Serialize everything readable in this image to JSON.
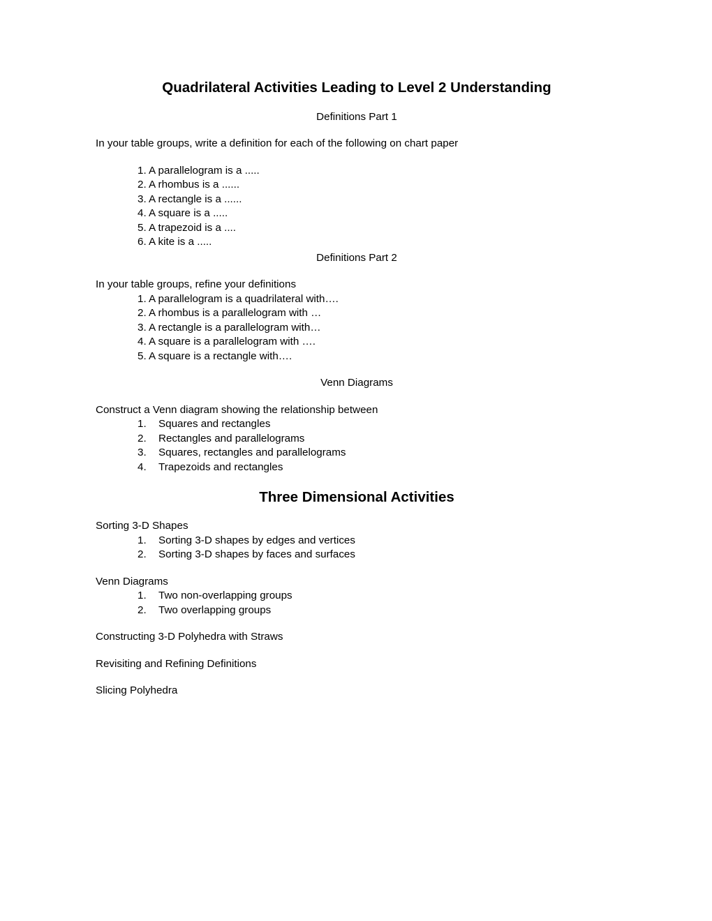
{
  "title1": "Quadrilateral Activities Leading to Level 2 Understanding",
  "subtitle1": "Definitions Part 1",
  "intro1": "In your table groups, write a definition for each of the following on chart paper",
  "defs1": {
    "0": "1. A parallelogram is a .....",
    "1": "2. A rhombus is a ......",
    "2": "3. A rectangle is a ......",
    "3": "4. A square is a .....",
    "4": "5. A trapezoid is a ....",
    "5": "6.  A kite is a ....."
  },
  "subtitle2": "Definitions Part 2",
  "intro2": "In your table groups, refine your definitions",
  "defs2": {
    "0": "1. A parallelogram is a quadrilateral with….",
    "1": "2. A rhombus is a parallelogram with …",
    "2": "3. A rectangle is a parallelogram with…",
    "3": "4. A square is a parallelogram with ….",
    "4": "5. A square is a rectangle with…."
  },
  "subtitle3": "Venn Diagrams",
  "intro3": "Construct a Venn diagram showing the relationship between",
  "venn": {
    "0": {
      "n": "1.",
      "t": "Squares and rectangles"
    },
    "1": {
      "n": "2.",
      "t": "Rectangles and parallelograms"
    },
    "2": {
      "n": "3.",
      "t": "Squares, rectangles and parallelograms"
    },
    "3": {
      "n": "4.",
      "t": "Trapezoids and rectangles"
    }
  },
  "title2": "Three Dimensional Activities",
  "sorting_title": "Sorting 3-D Shapes",
  "sorting": {
    "0": {
      "n": "1.",
      "t": "Sorting 3-D shapes by edges and vertices"
    },
    "1": {
      "n": "2.",
      "t": "Sorting 3-D shapes by faces and surfaces"
    }
  },
  "venn2_title": "Venn Diagrams",
  "venn2": {
    "0": {
      "n": "1.",
      "t": "Two non-overlapping groups"
    },
    "1": {
      "n": "2.",
      "t": "Two overlapping groups"
    }
  },
  "line1": "Constructing 3-D Polyhedra with Straws",
  "line2": "Revisiting and Refining Definitions",
  "line3": "Slicing Polyhedra"
}
